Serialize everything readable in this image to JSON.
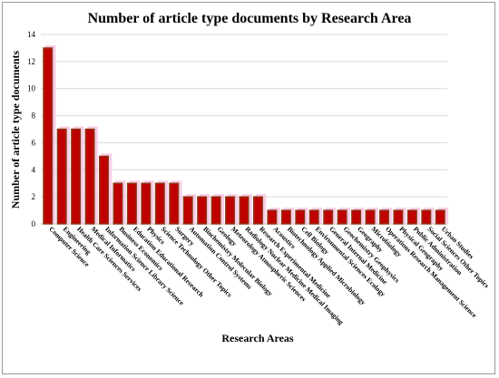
{
  "chart_data": {
    "type": "bar",
    "title": "Number of article type documents by Research Area",
    "xlabel": "Research Areas",
    "ylabel": "Number of article type documents",
    "ylim": [
      0,
      14
    ],
    "yticks": [
      0,
      2,
      4,
      6,
      8,
      10,
      12,
      14
    ],
    "grid": true,
    "bar_color": "#c00000",
    "bar_edge_color": "#8b3a1a",
    "bar_shadow_color": "#f7c6e0",
    "categories": [
      "Computer Science",
      "Engineering",
      "Health Care Sciences Services",
      "Medical Informatics",
      "Information Science Library Science",
      "Business Economics",
      "Education Educational Research",
      "Physics",
      "Science Technology Other Topics",
      "Surgery",
      "Automation Control Systems",
      "Biochemistry Molecular Biology",
      "Geology",
      "Meteorology Atmospheric Sciences",
      "Radiology Nuclear Medicine Medical Imaging",
      "Research Experimental Medicine",
      "Acoustics",
      "Biotechnology Applied Microbiology",
      "Cell Biology",
      "Environmental Sciences Ecology",
      "General Internal Medicine",
      "Geochemistry Geophysics",
      "Geography",
      "Microbiology",
      "Operations Research Management Science",
      "Physical Geography",
      "Public Administration",
      "Social Sciences Other Topics",
      "Urban Studies"
    ],
    "values": [
      13,
      7,
      7,
      7,
      5,
      3,
      3,
      3,
      3,
      3,
      2,
      2,
      2,
      2,
      2,
      2,
      1,
      1,
      1,
      1,
      1,
      1,
      1,
      1,
      1,
      1,
      1,
      1,
      1
    ]
  }
}
